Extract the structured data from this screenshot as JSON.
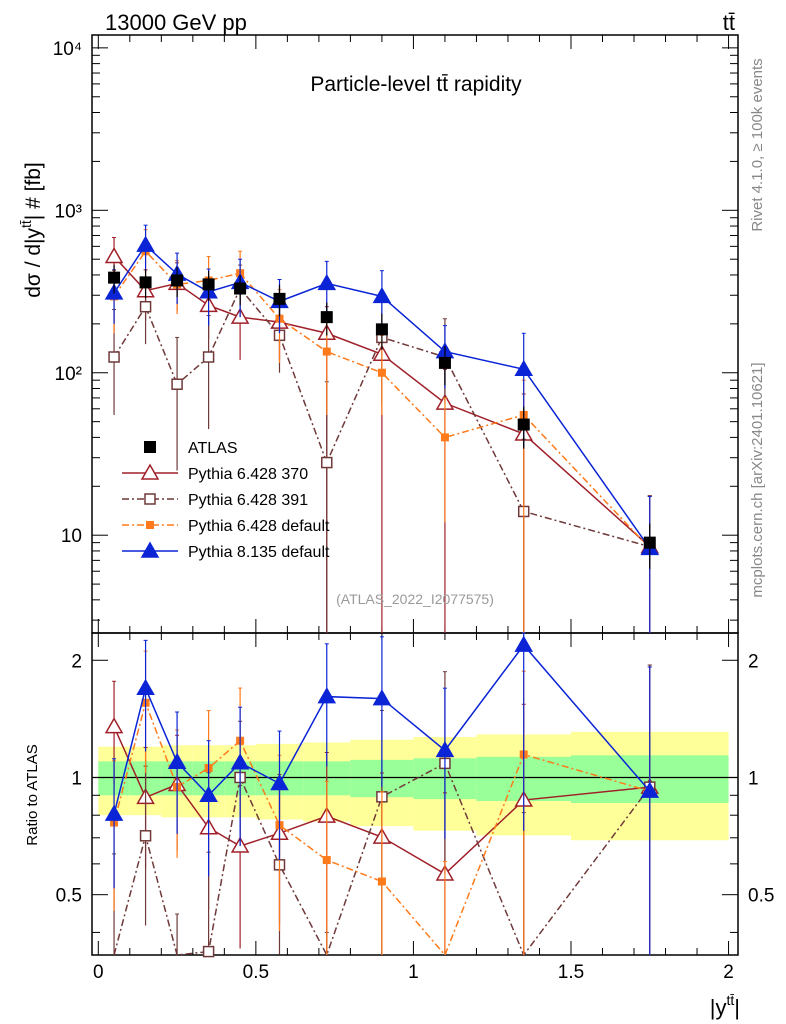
{
  "chart_data": {
    "type": "line",
    "header_left": "13000 GeV pp",
    "header_right": "tt̄",
    "title": "Particle-level tt̄ rapidity",
    "ylabel_main": "dσ / d|y",
    "ylabel_main_sup": "tt̄",
    "ylabel_main_tail": "| # [fb]",
    "ylabel_ratio": "Ratio to ATLAS",
    "xlabel": "|y",
    "xlabel_sup": "tt̄",
    "xlabel_tail": "|",
    "side_text_top": "Rivet 4.1.0, ≥ 100k events",
    "side_text_bottom": "mcplots.cern.ch [arXiv:2401.10621]",
    "analysis_label": "(ATLAS_2022_I2077575)",
    "xlim": [
      -0.02,
      2.03
    ],
    "ylim_main": [
      2.5,
      12000
    ],
    "ylim_ratio": [
      0.35,
      2.35
    ],
    "x_ticks": [
      "0",
      "0.5",
      "1",
      "1.5",
      "2"
    ],
    "y_ticks_main": [
      "10",
      "10²",
      "10³",
      "10⁴"
    ],
    "y_ticks_ratio": [
      "0.5",
      "1",
      "2"
    ],
    "bins": [
      [
        0,
        0.1
      ],
      [
        0.1,
        0.2
      ],
      [
        0.2,
        0.3
      ],
      [
        0.3,
        0.4
      ],
      [
        0.4,
        0.5
      ],
      [
        0.5,
        0.65
      ],
      [
        0.65,
        0.8
      ],
      [
        0.8,
        1.0
      ],
      [
        1.0,
        1.2
      ],
      [
        1.2,
        1.5
      ],
      [
        1.5,
        2.0
      ]
    ],
    "x": [
      0.05,
      0.15,
      0.25,
      0.35,
      0.45,
      0.575,
      0.725,
      0.9,
      1.1,
      1.35,
      1.75
    ],
    "data": {
      "name": "ATLAS",
      "values": [
        385,
        360,
        370,
        350,
        330,
        285,
        220,
        185,
        115,
        48,
        9
      ],
      "band_inner": [
        0.1,
        0.1,
        0.1,
        0.1,
        0.1,
        0.1,
        0.1,
        0.11,
        0.12,
        0.13,
        0.14
      ],
      "band_outer": [
        0.2,
        0.2,
        0.21,
        0.21,
        0.21,
        0.22,
        0.23,
        0.25,
        0.27,
        0.29,
        0.31
      ]
    },
    "series": [
      {
        "name": "Pythia 6.428 370",
        "color": "#a0202a",
        "marker": "triangle-open",
        "dash": "",
        "values": [
          520,
          320,
          355,
          260,
          220,
          205,
          175,
          130,
          65,
          42,
          8.5
        ],
        "err_up": [
          160,
          110,
          120,
          100,
          95,
          85,
          80,
          60,
          40,
          32,
          9
        ],
        "err_down": [
          150,
          110,
          115,
          100,
          100,
          85,
          175,
          130,
          65,
          42,
          8.5
        ]
      },
      {
        "name": "Pythia 6.428 391",
        "color": "#6f3939",
        "marker": "square-open",
        "dash": "7,3,2,3",
        "values": [
          125,
          255,
          85,
          125,
          330,
          170,
          28,
          165,
          125,
          14,
          8.5
        ],
        "err_up": [
          120,
          130,
          80,
          100,
          130,
          110,
          60,
          110,
          90,
          25,
          9
        ],
        "err_down": [
          70,
          105,
          60,
          80,
          110,
          70,
          28,
          100,
          60,
          14,
          8.5
        ]
      },
      {
        "name": "Pythia 6.428 default",
        "color": "#ff7a1a",
        "marker": "square-filled",
        "dash": "7,3,2,3",
        "values": [
          295,
          560,
          350,
          370,
          410,
          215,
          135,
          100,
          40,
          55,
          8.3
        ],
        "err_up": [
          130,
          200,
          140,
          150,
          150,
          110,
          80,
          70,
          30,
          35,
          9
        ],
        "err_down": [
          120,
          190,
          120,
          130,
          140,
          100,
          80,
          45,
          28,
          55,
          8.3
        ]
      },
      {
        "name": "Pythia 8.135 default",
        "color": "#0a24d6",
        "marker": "triangle-filled",
        "dash": "",
        "values": [
          310,
          610,
          405,
          315,
          360,
          275,
          355,
          295,
          135,
          105,
          8.3
        ],
        "err_up": [
          120,
          200,
          140,
          120,
          140,
          100,
          130,
          130,
          60,
          70,
          9
        ],
        "err_down": [
          110,
          190,
          140,
          120,
          140,
          100,
          120,
          120,
          55,
          70,
          8.3
        ]
      }
    ],
    "legend_position": "left-middle"
  }
}
